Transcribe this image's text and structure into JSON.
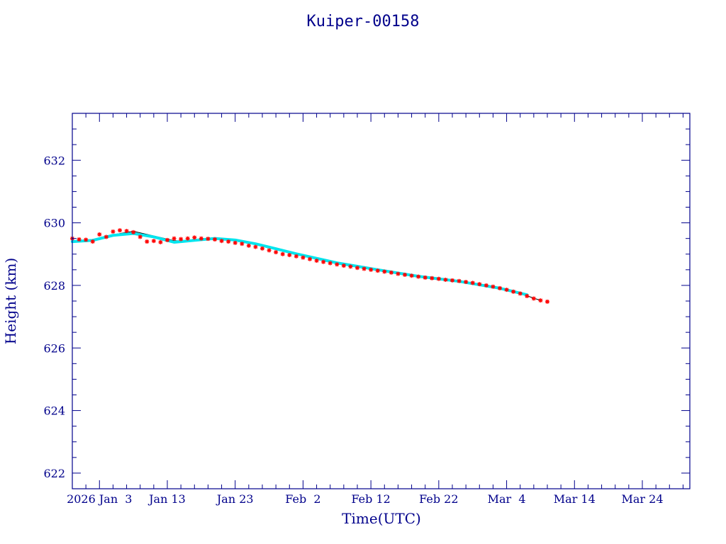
{
  "chart_data": {
    "type": "scatter",
    "title": "Kuiper-00158",
    "xlabel": "Time(UTC)",
    "ylabel": "Height (km)",
    "xlim": [
      "2025-12-30",
      "2026-03-31"
    ],
    "ylim": [
      621.5,
      633.5
    ],
    "x_ticks": [
      {
        "date": "2026-01-03",
        "label": "2026 Jan  3"
      },
      {
        "date": "2026-01-13",
        "label": "Jan 13"
      },
      {
        "date": "2026-01-23",
        "label": "Jan 23"
      },
      {
        "date": "2026-02-02",
        "label": "Feb  2"
      },
      {
        "date": "2026-02-12",
        "label": "Feb 12"
      },
      {
        "date": "2026-02-22",
        "label": "Feb 22"
      },
      {
        "date": "2026-03-04",
        "label": "Mar  4"
      },
      {
        "date": "2026-03-14",
        "label": "Mar 14"
      },
      {
        "date": "2026-03-24",
        "label": "Mar 24"
      }
    ],
    "y_ticks": [
      622,
      624,
      626,
      628,
      630,
      632
    ],
    "grid": false,
    "colors": {
      "frame": "#00008b",
      "fit_line": "#000000",
      "trace": "#00e5ee",
      "markers": "#ff0000"
    },
    "series": [
      {
        "role": "fit",
        "x": [
          "2025-12-30",
          "2026-01-02",
          "2026-01-05",
          "2026-01-08",
          "2026-01-11",
          "2026-01-14",
          "2026-01-17",
          "2026-01-20",
          "2026-01-23",
          "2026-01-26",
          "2026-01-29",
          "2026-02-01",
          "2026-02-04",
          "2026-02-07",
          "2026-02-10",
          "2026-02-13",
          "2026-02-16",
          "2026-02-19",
          "2026-02-22",
          "2026-02-25",
          "2026-02-28",
          "2026-03-03",
          "2026-03-06",
          "2026-03-09"
        ],
        "y": [
          629.42,
          629.45,
          629.62,
          629.73,
          629.58,
          629.43,
          629.42,
          629.52,
          629.45,
          629.34,
          629.2,
          629.02,
          628.88,
          628.74,
          628.62,
          628.51,
          628.41,
          628.3,
          628.21,
          628.14,
          628.05,
          627.92,
          627.74,
          627.52
        ]
      },
      {
        "role": "trace",
        "x": [
          "2025-12-30",
          "2026-01-02",
          "2026-01-05",
          "2026-01-08",
          "2026-01-11",
          "2026-01-14",
          "2026-01-17",
          "2026-01-20",
          "2026-01-23",
          "2026-01-26",
          "2026-02-01",
          "2026-02-07",
          "2026-02-13",
          "2026-02-19",
          "2026-02-25",
          "2026-03-03",
          "2026-03-07"
        ],
        "y": [
          629.4,
          629.44,
          629.6,
          629.66,
          629.55,
          629.38,
          629.44,
          629.5,
          629.45,
          629.33,
          629.01,
          628.72,
          628.5,
          628.29,
          628.13,
          627.91,
          627.7
        ]
      },
      {
        "role": "points",
        "x": [
          "2025-12-30",
          "2025-12-31",
          "2026-01-01",
          "2026-01-02",
          "2026-01-03",
          "2026-01-04",
          "2026-01-05",
          "2026-01-06",
          "2026-01-07",
          "2026-01-08",
          "2026-01-09",
          "2026-01-10",
          "2026-01-11",
          "2026-01-12",
          "2026-01-13",
          "2026-01-14",
          "2026-01-15",
          "2026-01-16",
          "2026-01-17",
          "2026-01-18",
          "2026-01-19",
          "2026-01-20",
          "2026-01-21",
          "2026-01-22",
          "2026-01-23",
          "2026-01-24",
          "2026-01-25",
          "2026-01-26",
          "2026-01-27",
          "2026-01-28",
          "2026-01-29",
          "2026-01-30",
          "2026-01-31",
          "2026-02-01",
          "2026-02-02",
          "2026-02-03",
          "2026-02-04",
          "2026-02-05",
          "2026-02-06",
          "2026-02-07",
          "2026-02-08",
          "2026-02-09",
          "2026-02-10",
          "2026-02-11",
          "2026-02-12",
          "2026-02-13",
          "2026-02-14",
          "2026-02-15",
          "2026-02-16",
          "2026-02-17",
          "2026-02-18",
          "2026-02-19",
          "2026-02-20",
          "2026-02-21",
          "2026-02-22",
          "2026-02-23",
          "2026-02-24",
          "2026-02-25",
          "2026-02-26",
          "2026-02-27",
          "2026-02-28",
          "2026-03-01",
          "2026-03-02",
          "2026-03-03",
          "2026-03-04",
          "2026-03-05",
          "2026-03-06",
          "2026-03-07",
          "2026-03-08",
          "2026-03-09",
          "2026-03-10"
        ],
        "y": [
          629.5,
          629.47,
          629.46,
          629.4,
          629.63,
          629.55,
          629.72,
          629.76,
          629.74,
          629.7,
          629.55,
          629.4,
          629.42,
          629.38,
          629.45,
          629.5,
          629.48,
          629.5,
          629.53,
          629.5,
          629.49,
          629.47,
          629.42,
          629.4,
          629.36,
          629.33,
          629.27,
          629.23,
          629.18,
          629.12,
          629.06,
          629.0,
          628.97,
          628.93,
          628.89,
          628.84,
          628.79,
          628.75,
          628.71,
          628.67,
          628.63,
          628.6,
          628.56,
          628.53,
          628.5,
          628.47,
          628.44,
          628.41,
          628.37,
          628.34,
          628.31,
          628.28,
          628.25,
          628.23,
          628.21,
          628.18,
          628.16,
          628.14,
          628.11,
          628.08,
          628.04,
          628.0,
          627.96,
          627.91,
          627.86,
          627.8,
          627.74,
          627.66,
          627.58,
          627.52,
          627.48
        ]
      }
    ]
  }
}
